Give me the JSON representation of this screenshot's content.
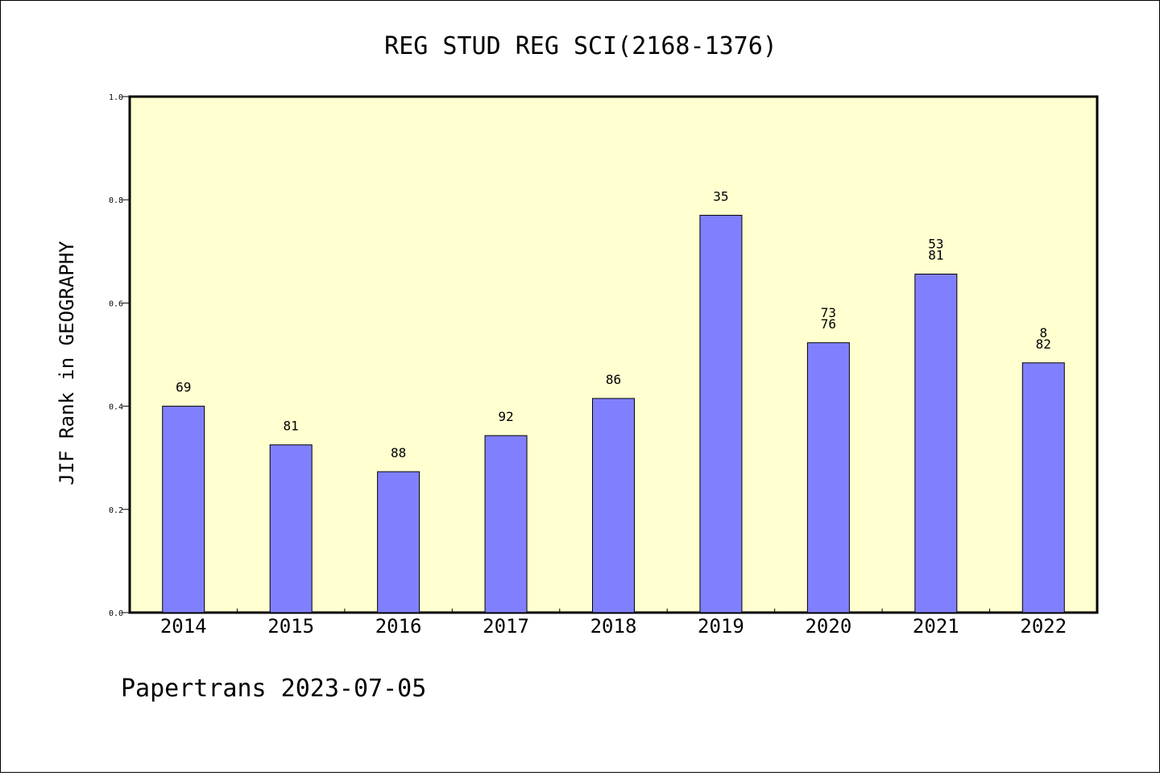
{
  "chart_data": {
    "type": "bar",
    "title": "REG STUD REG SCI(2168-1376)",
    "xlabel": "",
    "ylabel": "JIF Rank in GEOGRAPHY",
    "ylim": [
      0,
      1.0
    ],
    "yticks": [
      "0.0",
      "0.2",
      "0.4",
      "0.6",
      "0.8",
      "1.0"
    ],
    "categories": [
      "2014",
      "2015",
      "2016",
      "2017",
      "2018",
      "2019",
      "2020",
      "2021",
      "2022"
    ],
    "values": [
      0.4,
      0.325,
      0.273,
      0.343,
      0.415,
      0.77,
      0.523,
      0.656,
      0.484
    ],
    "labels": [
      [
        "69"
      ],
      [
        "81"
      ],
      [
        "88"
      ],
      [
        "92"
      ],
      [
        "86"
      ],
      [
        "35"
      ],
      [
        "73",
        "76"
      ],
      [
        "53",
        "81"
      ],
      [
        "8",
        "82"
      ]
    ],
    "grid": false,
    "legend": "none",
    "colors": {
      "plot_bg": "#ffffd0",
      "bar": "#8080ff",
      "outline": "#000000"
    }
  },
  "footer": "Papertrans 2023-07-05"
}
